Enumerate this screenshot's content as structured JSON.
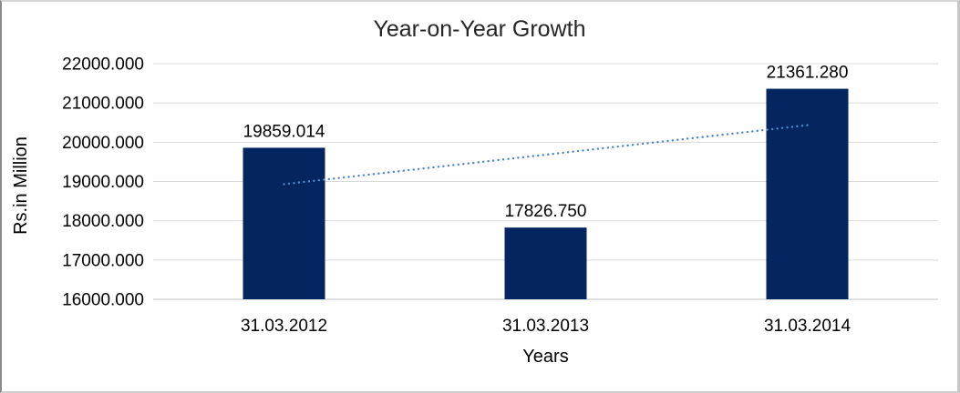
{
  "chart_data": {
    "type": "bar",
    "title": "Year-on-Year Growth",
    "xlabel": "Years",
    "ylabel": "Rs.in Million",
    "categories": [
      "31.03.2012",
      "31.03.2013",
      "31.03.2014"
    ],
    "values": [
      19859.014,
      17826.75,
      21361.28
    ],
    "data_labels": [
      "19859.014",
      "17826.750",
      "21361.280"
    ],
    "ylim": [
      16000,
      22000
    ],
    "ytick_step": 1000,
    "ytick_labels": [
      "16000.000",
      "17000.000",
      "18000.000",
      "19000.000",
      "20000.000",
      "21000.000",
      "22000.000"
    ],
    "grid": true,
    "legend": false,
    "trendline": {
      "type": "linear",
      "style": "dotted"
    },
    "colors": {
      "bar": "#04255f",
      "trendline": "#4e86c8",
      "gridline": "#d9d9d9",
      "axis_line": "#c0c0c0",
      "text": "#000000",
      "title_text": "#262626"
    }
  }
}
